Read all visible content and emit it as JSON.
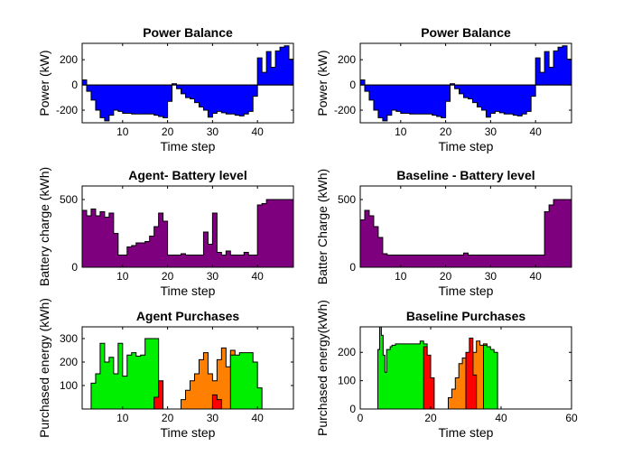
{
  "colors": {
    "blue": "#0000ff",
    "purple": "#7f007f",
    "green": "#00ee00",
    "orange": "#ff8000",
    "red": "#ff0000",
    "axis": "#000000"
  },
  "chart_data": [
    {
      "type": "area",
      "title": "Power Balance",
      "xlabel": "Time step",
      "ylabel": "Power (kW)",
      "xlim": [
        1,
        48
      ],
      "ylim": [
        -300,
        330
      ],
      "xticks": [
        10,
        20,
        30,
        40
      ],
      "yticks": [
        -200,
        0,
        200
      ],
      "series": [
        {
          "color": "#0000ff",
          "x": [
            1,
            2,
            3,
            4,
            5,
            6,
            7,
            8,
            9,
            10,
            11,
            12,
            13,
            14,
            15,
            16,
            17,
            18,
            19,
            20,
            21,
            22,
            23,
            24,
            25,
            26,
            27,
            28,
            29,
            30,
            31,
            32,
            33,
            34,
            35,
            36,
            37,
            38,
            39,
            40,
            41,
            42,
            43,
            44,
            45,
            46,
            47,
            48
          ],
          "values": [
            40,
            -50,
            -120,
            -200,
            -260,
            -285,
            -240,
            -200,
            -210,
            -225,
            -225,
            -230,
            -230,
            -230,
            -230,
            -230,
            -240,
            -250,
            -260,
            -130,
            10,
            -30,
            -70,
            -100,
            -110,
            -140,
            -175,
            -200,
            -255,
            -225,
            -210,
            -220,
            -230,
            -230,
            -240,
            -245,
            -230,
            -210,
            -90,
            215,
            100,
            265,
            140,
            270,
            300,
            310,
            205,
            265
          ]
        }
      ]
    },
    {
      "type": "area",
      "title": "Power Balance",
      "xlabel": "Time step",
      "ylabel": "Power (kW)",
      "xlim": [
        1,
        48
      ],
      "ylim": [
        -300,
        330
      ],
      "xticks": [
        10,
        20,
        30,
        40
      ],
      "yticks": [
        -200,
        0,
        200
      ],
      "series": [
        {
          "color": "#0000ff",
          "x": [
            1,
            2,
            3,
            4,
            5,
            6,
            7,
            8,
            9,
            10,
            11,
            12,
            13,
            14,
            15,
            16,
            17,
            18,
            19,
            20,
            21,
            22,
            23,
            24,
            25,
            26,
            27,
            28,
            29,
            30,
            31,
            32,
            33,
            34,
            35,
            36,
            37,
            38,
            39,
            40,
            41,
            42,
            43,
            44,
            45,
            46,
            47,
            48
          ],
          "values": [
            40,
            -50,
            -120,
            -200,
            -260,
            -285,
            -240,
            -200,
            -210,
            -225,
            -225,
            -230,
            -230,
            -230,
            -230,
            -230,
            -240,
            -250,
            -260,
            -130,
            10,
            -30,
            -70,
            -100,
            -110,
            -140,
            -175,
            -200,
            -255,
            -225,
            -210,
            -220,
            -230,
            -230,
            -240,
            -245,
            -230,
            -210,
            -90,
            215,
            100,
            265,
            140,
            270,
            300,
            310,
            205,
            265
          ]
        }
      ]
    },
    {
      "type": "area",
      "title": "Agent- Battery level",
      "xlabel": "Time step",
      "ylabel": "Battery charge (kWh)",
      "xlim": [
        1,
        48
      ],
      "ylim": [
        0,
        600
      ],
      "xticks": [
        10,
        20,
        30,
        40
      ],
      "yticks": [
        0,
        500
      ],
      "series": [
        {
          "color": "#7f007f",
          "x": [
            1,
            2,
            3,
            4,
            5,
            6,
            7,
            8,
            9,
            10,
            11,
            12,
            13,
            14,
            15,
            16,
            17,
            18,
            19,
            20,
            21,
            22,
            23,
            24,
            25,
            26,
            27,
            28,
            29,
            30,
            31,
            32,
            33,
            34,
            35,
            36,
            37,
            38,
            39,
            40,
            41,
            42,
            43,
            44,
            45,
            46,
            47,
            48
          ],
          "values": [
            420,
            380,
            430,
            380,
            410,
            370,
            400,
            250,
            90,
            90,
            150,
            160,
            180,
            180,
            190,
            230,
            300,
            400,
            340,
            90,
            90,
            90,
            100,
            90,
            90,
            90,
            90,
            260,
            170,
            400,
            110,
            90,
            120,
            90,
            90,
            90,
            110,
            90,
            90,
            460,
            470,
            500,
            500,
            500,
            500,
            500,
            500,
            500
          ]
        }
      ]
    },
    {
      "type": "area",
      "title": "Baseline - Battery level",
      "xlabel": "Time step",
      "ylabel": "Batter Charge (kWh)",
      "xlim": [
        1,
        48
      ],
      "ylim": [
        0,
        600
      ],
      "xticks": [
        10,
        20,
        30,
        40
      ],
      "yticks": [
        0,
        500
      ],
      "series": [
        {
          "color": "#7f007f",
          "x": [
            1,
            2,
            3,
            4,
            5,
            6,
            7,
            8,
            9,
            10,
            11,
            12,
            13,
            14,
            15,
            16,
            17,
            18,
            19,
            20,
            21,
            22,
            23,
            24,
            25,
            26,
            27,
            28,
            29,
            30,
            31,
            32,
            33,
            34,
            35,
            36,
            37,
            38,
            39,
            40,
            41,
            42,
            43,
            44,
            45,
            46,
            47,
            48
          ],
          "values": [
            350,
            420,
            380,
            300,
            220,
            100,
            90,
            90,
            90,
            90,
            90,
            90,
            90,
            90,
            90,
            90,
            90,
            90,
            90,
            90,
            90,
            90,
            90,
            105,
            90,
            90,
            90,
            90,
            90,
            90,
            90,
            90,
            90,
            90,
            90,
            90,
            90,
            90,
            90,
            90,
            90,
            410,
            460,
            500,
            500,
            500,
            500,
            500
          ]
        }
      ]
    },
    {
      "type": "area",
      "title": "Agent Purchases",
      "xlabel": "Time step",
      "ylabel": "Purchased energy (kWh)",
      "xlim": [
        1,
        48
      ],
      "ylim": [
        0,
        350
      ],
      "xticks": [
        10,
        20,
        30,
        40
      ],
      "yticks": [
        100,
        200,
        300
      ],
      "series": [
        {
          "color": "#00ee00",
          "x": [
            3,
            4,
            5,
            6,
            7,
            8,
            9,
            10,
            11,
            12,
            13,
            14,
            15,
            16,
            17,
            18
          ],
          "values": [
            110,
            150,
            280,
            200,
            220,
            150,
            280,
            140,
            230,
            240,
            225,
            230,
            300,
            300,
            300,
            0
          ]
        },
        {
          "color": "#ff0000",
          "x": [
            17,
            18,
            19
          ],
          "values": [
            50,
            120,
            0
          ]
        },
        {
          "color": "#ff8000",
          "x": [
            23,
            24,
            25,
            26,
            27,
            28,
            29,
            30,
            31,
            32,
            33,
            34,
            35
          ],
          "values": [
            40,
            80,
            120,
            150,
            210,
            240,
            150,
            120,
            210,
            260,
            180,
            250,
            0
          ]
        },
        {
          "color": "#ff0000",
          "x": [
            30,
            31,
            32
          ],
          "values": [
            60,
            40,
            0
          ]
        },
        {
          "color": "#00ee00",
          "x": [
            34,
            35,
            36,
            37,
            38,
            39,
            40,
            41
          ],
          "values": [
            230,
            230,
            240,
            240,
            240,
            200,
            90,
            0
          ]
        }
      ]
    },
    {
      "type": "area",
      "title": "Baseline Purchases",
      "xlabel": "Time step",
      "ylabel": "Purchased energy(kWh)",
      "xlim": [
        0,
        60
      ],
      "ylim": [
        0,
        290
      ],
      "xticks": [
        0,
        20,
        40,
        60
      ],
      "yticks": [
        0,
        100,
        200
      ],
      "series": [
        {
          "color": "#00ee00",
          "x": [
            5,
            5.5,
            6,
            6.5,
            7,
            7.5,
            8,
            8.5,
            9,
            10,
            11,
            12,
            13,
            14,
            15,
            16,
            17,
            18,
            19,
            20
          ],
          "values": [
            210,
            290,
            260,
            190,
            130,
            210,
            210,
            220,
            225,
            230,
            230,
            230,
            230,
            230,
            230,
            230,
            240,
            230,
            0,
            0
          ]
        },
        {
          "color": "#ff0000",
          "x": [
            18,
            19,
            20,
            21
          ],
          "values": [
            220,
            190,
            110,
            0
          ]
        },
        {
          "color": "#ff8000",
          "x": [
            25,
            26,
            27,
            28,
            29,
            30,
            31,
            32,
            33,
            34,
            35,
            36
          ],
          "values": [
            40,
            70,
            110,
            160,
            180,
            100,
            100,
            200,
            240,
            225,
            230,
            0
          ]
        },
        {
          "color": "#ff0000",
          "x": [
            30,
            31,
            32,
            33
          ],
          "values": [
            200,
            250,
            120,
            0
          ]
        },
        {
          "color": "#00ee00",
          "x": [
            35,
            36,
            37,
            38,
            39,
            40
          ],
          "values": [
            225,
            220,
            210,
            200,
            0,
            0
          ]
        }
      ]
    }
  ]
}
